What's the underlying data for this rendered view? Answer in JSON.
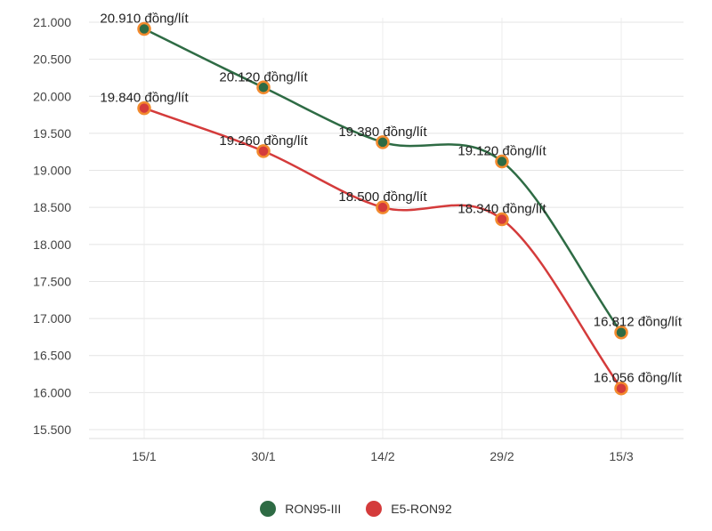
{
  "chart_data": {
    "type": "line",
    "categories": [
      "15/1",
      "30/1",
      "14/2",
      "29/2",
      "15/3"
    ],
    "yticks": [
      "15.500",
      "16.000",
      "16.500",
      "17.000",
      "17.500",
      "18.000",
      "18.500",
      "19.000",
      "19.500",
      "20.000",
      "20.500",
      "21.000"
    ],
    "ylim": [
      15500,
      21000
    ],
    "grid": true,
    "legend_position": "bottom",
    "series": [
      {
        "name": "RON95-III",
        "color": "#2e6b44",
        "marker_border": "#f28a2e",
        "values": [
          20910,
          20120,
          19380,
          19120,
          16812
        ],
        "labels": [
          "20.910 đồng/lít",
          "20.120 đồng/lít",
          "19.380 đồng/lít",
          "19.120 đồng/lít",
          "16.812 đồng/lít"
        ]
      },
      {
        "name": "E5-RON92",
        "color": "#d43b3b",
        "marker_border": "#f28a2e",
        "values": [
          19840,
          19260,
          18500,
          18340,
          16056
        ],
        "labels": [
          "19.840 đồng/lít",
          "19.260 đồng/lít",
          "18.500 đồng/lít",
          "18.340 đồng/lít",
          "16.056 đồng/lít"
        ]
      }
    ]
  }
}
